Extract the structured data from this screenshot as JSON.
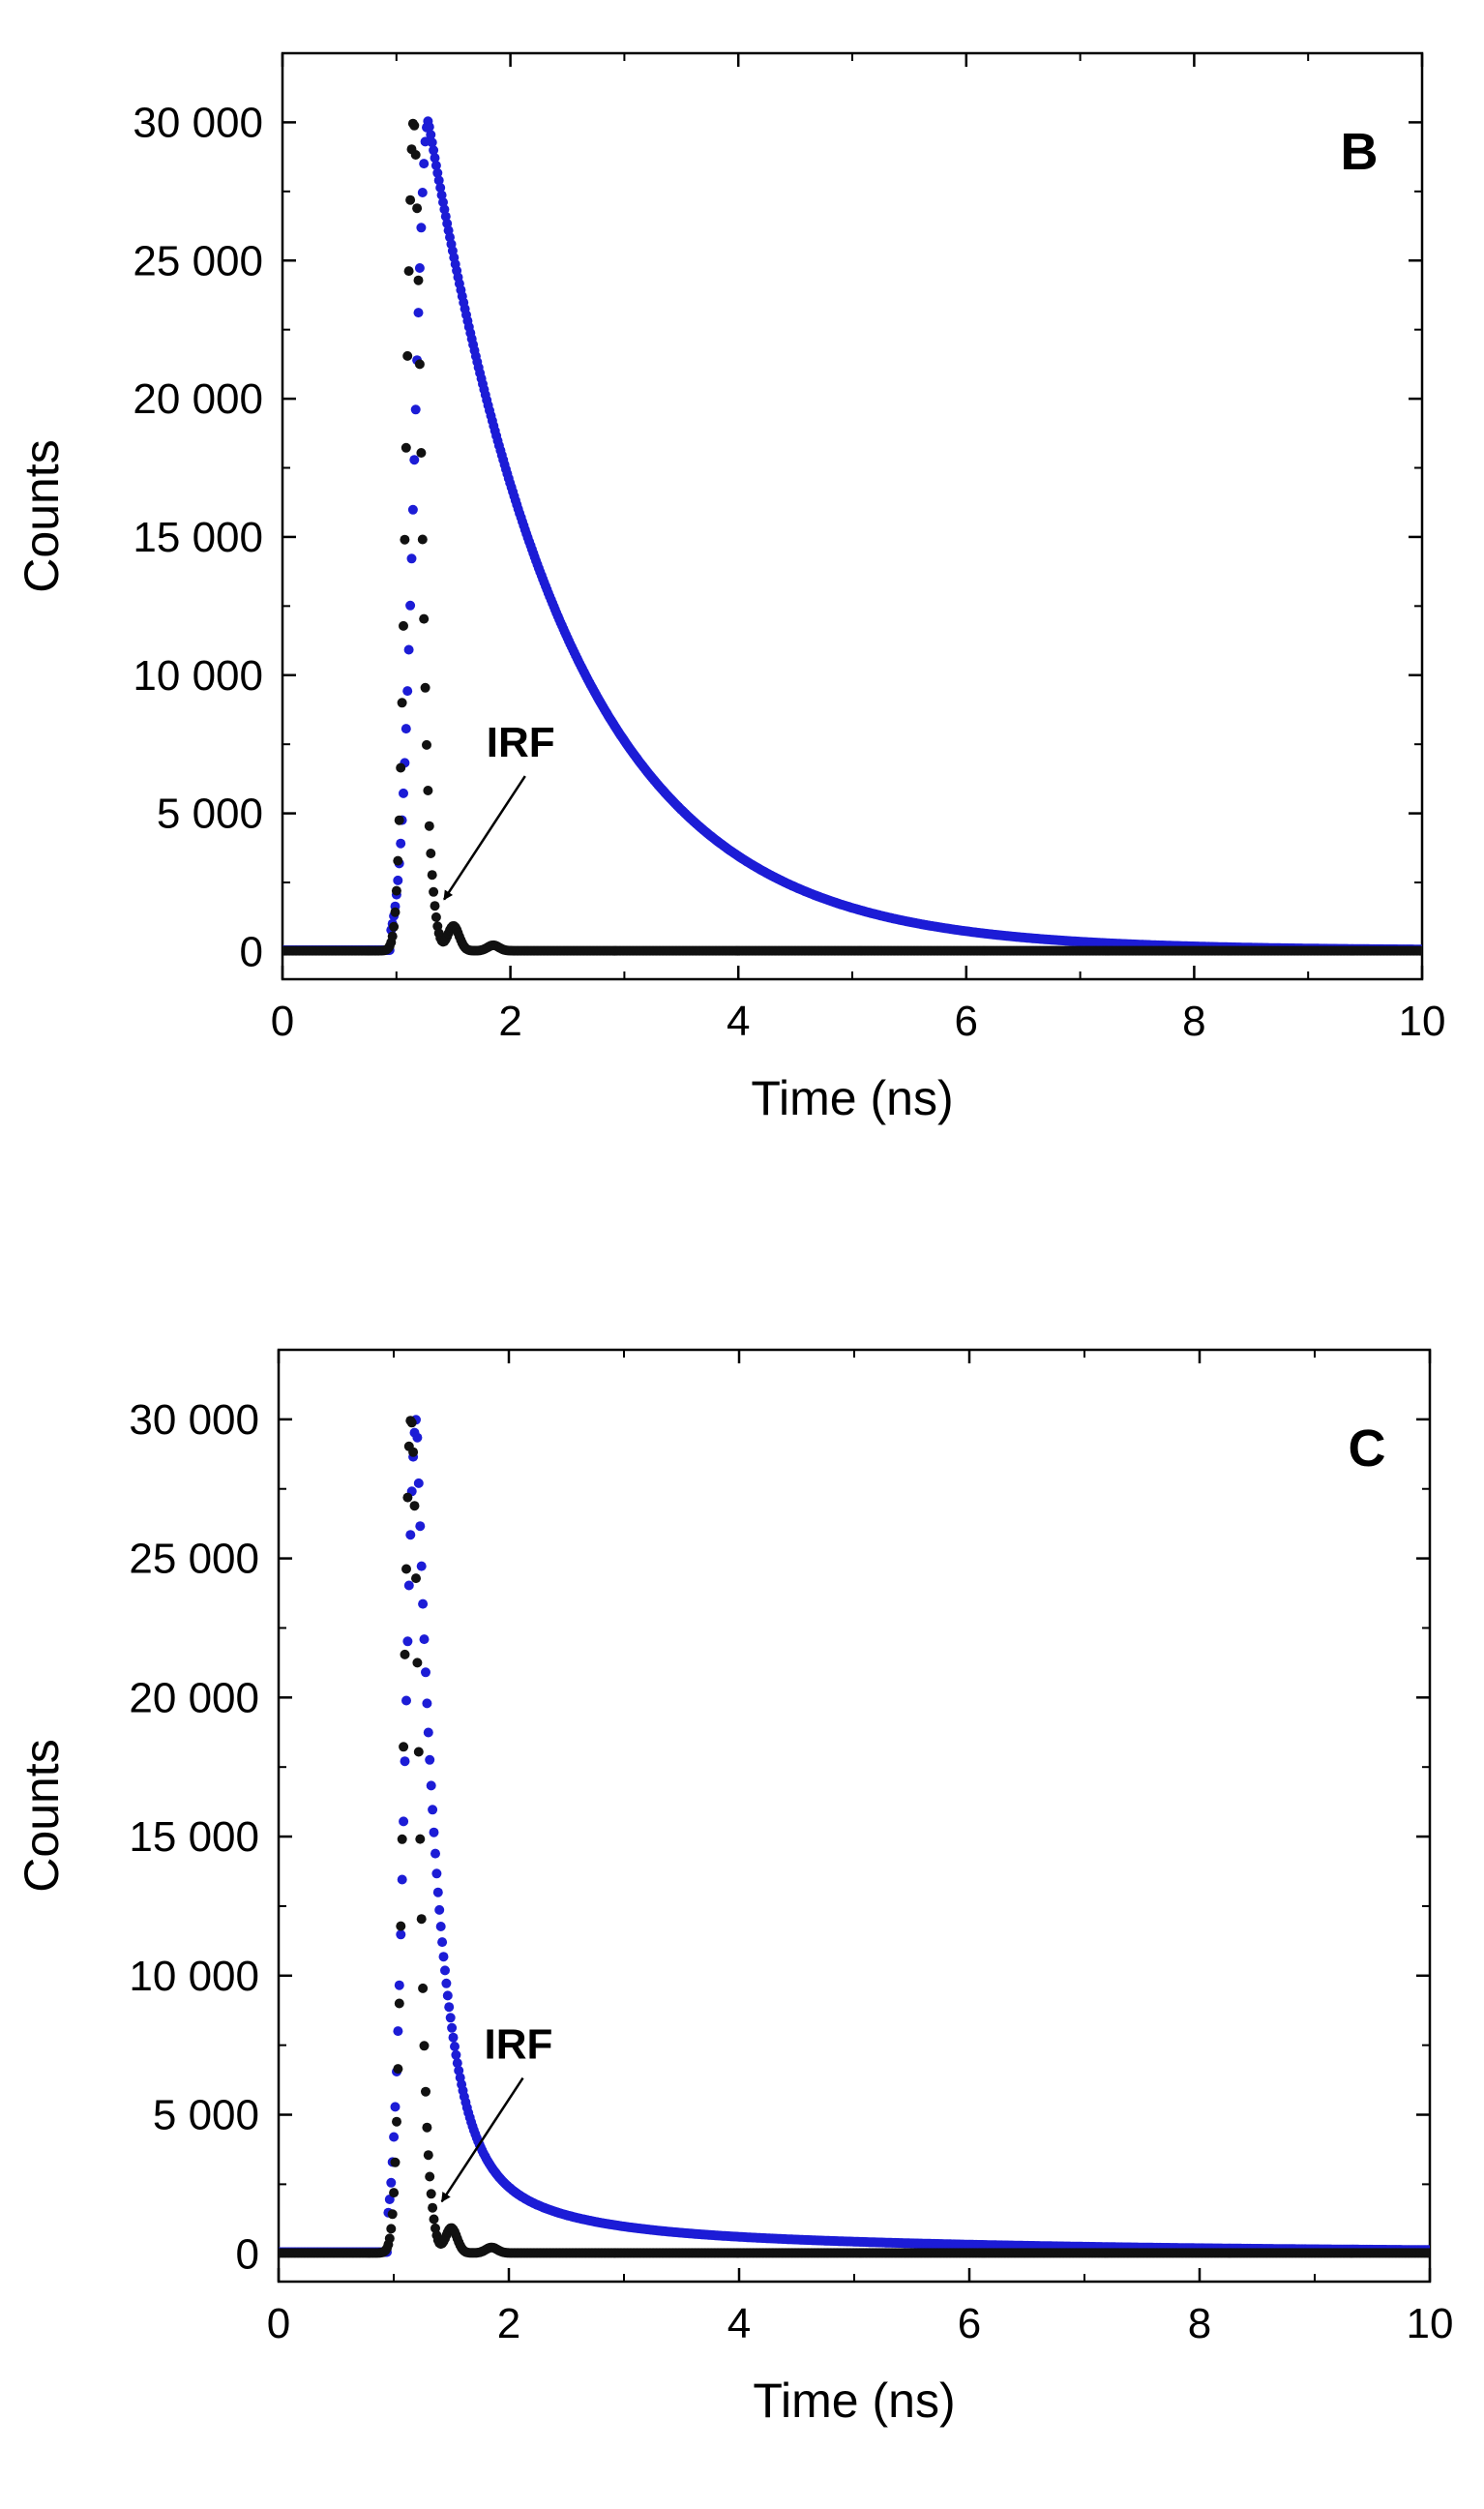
{
  "colors": {
    "sample": "#1c1cd6",
    "irf": "#111111",
    "axis": "#000000"
  },
  "chart_data": [
    {
      "type": "scatter",
      "panel_label": "B",
      "xlabel": "Time (ns)",
      "ylabel": "Counts",
      "xlim": [
        0,
        10
      ],
      "ylim": [
        -1000,
        32500
      ],
      "x_ticks": [
        0,
        2,
        4,
        6,
        8,
        10
      ],
      "x_tick_labels": [
        "0",
        "2",
        "4",
        "6",
        "8",
        "10"
      ],
      "y_ticks": [
        0,
        5000,
        10000,
        15000,
        20000,
        25000,
        30000
      ],
      "y_tick_labels": [
        "0",
        "5 000",
        "10 000",
        "15 000",
        "20 000",
        "25 000",
        "30 000"
      ],
      "grid": false,
      "annotation": {
        "text": "IRF",
        "x": 1.45,
        "y": 1800,
        "arrow_to": [
          1.35,
          1600
        ]
      },
      "series": [
        {
          "role": "sample",
          "color": "#1c1cd6",
          "rise": {
            "t0": 0.95,
            "t_peak": 1.28,
            "peak": 30000,
            "sigma": 0.12
          },
          "decay": [
            {
              "amp": 30000,
              "tau": 1.25
            }
          ],
          "baseline": 50
        },
        {
          "role": "irf",
          "color": "#111111",
          "shape": "instrument-response",
          "peak_t": 1.15,
          "peak": 30000,
          "width": 0.065,
          "afterpulses": [
            {
              "t": 1.3,
              "amp": 1500
            },
            {
              "t": 1.5,
              "amp": 900
            },
            {
              "t": 1.85,
              "amp": 200
            }
          ],
          "baseline": 30
        }
      ]
    },
    {
      "type": "scatter",
      "panel_label": "C",
      "xlabel": "Time (ns)",
      "ylabel": "Counts",
      "xlim": [
        0,
        10
      ],
      "ylim": [
        -1000,
        32500
      ],
      "x_ticks": [
        0,
        2,
        4,
        6,
        8,
        10
      ],
      "x_tick_labels": [
        "0",
        "2",
        "4",
        "6",
        "8",
        "10"
      ],
      "y_ticks": [
        0,
        5000,
        10000,
        15000,
        20000,
        25000,
        30000
      ],
      "y_tick_labels": [
        "0",
        "5 000",
        "10 000",
        "15 000",
        "20 000",
        "25 000",
        "30 000"
      ],
      "grid": false,
      "annotation": {
        "text": "IRF",
        "x": 1.45,
        "y": 1800,
        "arrow_to": [
          1.35,
          1600
        ]
      },
      "series": [
        {
          "role": "sample",
          "color": "#1c1cd6",
          "rise": {
            "t0": 0.95,
            "t_peak": 1.2,
            "peak": 30000,
            "sigma": 0.1
          },
          "decay": [
            {
              "amp": 25000,
              "tau": 0.18
            },
            {
              "amp": 3800,
              "tau": 0.65
            },
            {
              "amp": 1200,
              "tau": 3.2
            }
          ],
          "baseline": 60
        },
        {
          "role": "irf",
          "color": "#111111",
          "shape": "instrument-response",
          "peak_t": 1.15,
          "peak": 30000,
          "width": 0.065,
          "afterpulses": [
            {
              "t": 1.3,
              "amp": 1500
            },
            {
              "t": 1.5,
              "amp": 900
            },
            {
              "t": 1.85,
              "amp": 200
            }
          ],
          "baseline": 30
        }
      ]
    }
  ]
}
